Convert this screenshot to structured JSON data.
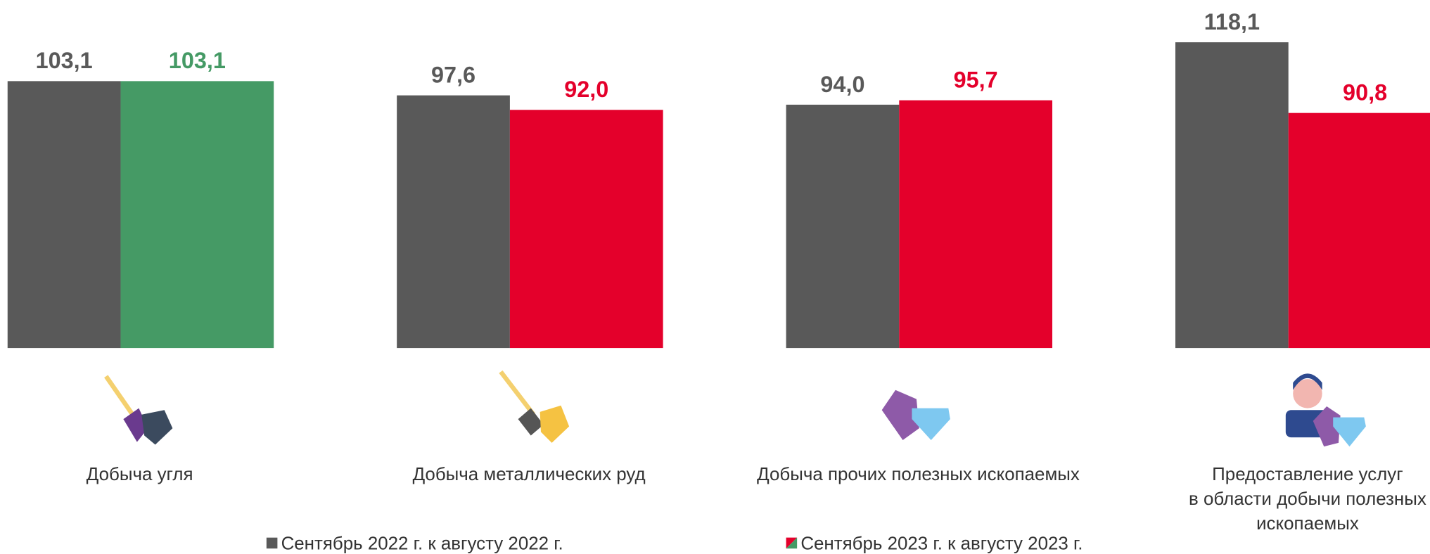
{
  "chart_data": {
    "type": "bar",
    "categories": [
      [
        "Добыча угля"
      ],
      [
        "Добыча металлических руд"
      ],
      [
        "Добыча прочих полезных ископаемых"
      ],
      [
        "Предоставление услуг",
        "в области добычи полезных",
        "ископаемых"
      ]
    ],
    "series": [
      {
        "name": "Сентябрь 2022 г. к августу 2022 г.",
        "color": "#595959",
        "values": [
          103.1,
          97.6,
          94.0,
          118.1
        ],
        "value_labels": [
          "103,1",
          "97,6",
          "94,0",
          "118,1"
        ]
      },
      {
        "name": "Сентябрь 2023 г. к августу 2023 г.",
        "color": [
          "#459a65",
          "#e4002b",
          "#e4002b",
          "#e4002b"
        ],
        "values": [
          103.1,
          92.0,
          95.7,
          90.8
        ],
        "value_labels": [
          "103,1",
          "92,0",
          "95,7",
          "90,8"
        ]
      }
    ],
    "ylim": [
      0,
      120
    ],
    "grid": false
  }
}
